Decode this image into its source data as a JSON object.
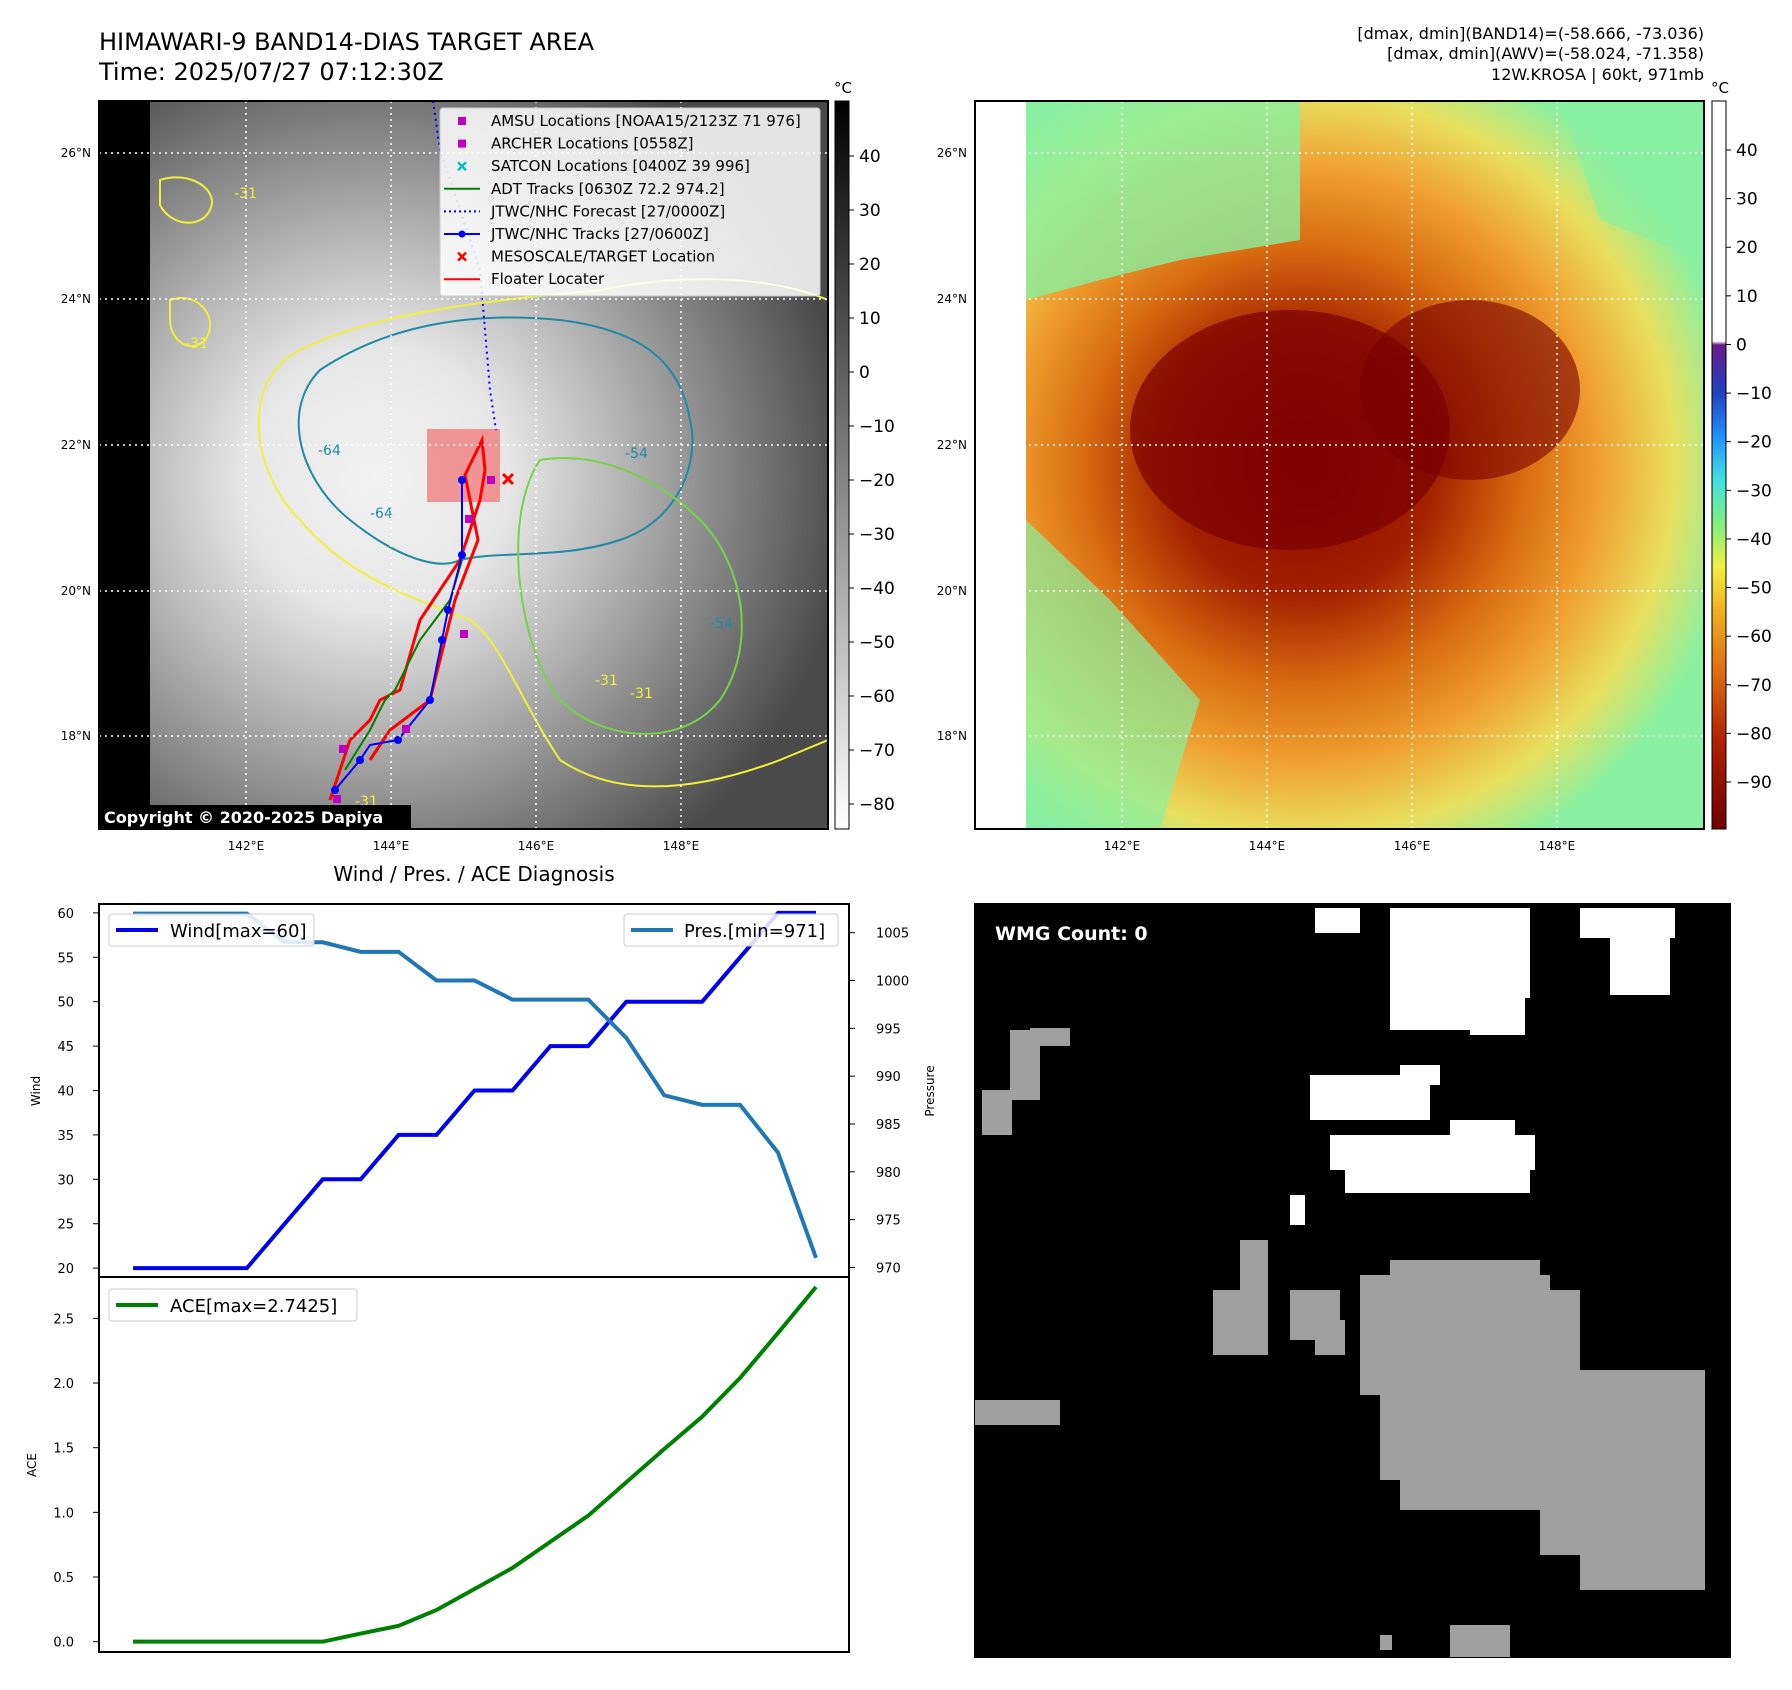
{
  "header": {
    "title_line1": "HIMAWARI-9 BAND14-DIAS TARGET AREA",
    "title_line2": "Time: 2025/07/27 07:12:30Z",
    "info_line1": "[dmax, dmin](BAND14)=(-58.666, -73.036)",
    "info_line2": "[dmax, dmin](AWV)=(-58.024, -71.358)",
    "info_line3": "12W.KROSA | 60kt, 971mb"
  },
  "colors": {
    "wind": "#0000ee",
    "pressure": "#1f77b4",
    "ace": "#008000",
    "adt": "#008000",
    "jtwc": "#0000ff",
    "floater": "#ff0000",
    "amsu": "#c000c0",
    "satcon": "#00c0c0",
    "target_box": "#f08080",
    "contour_yellow": "#f0f03c",
    "contour_teal": "#1f8aa0",
    "contour_green": "#7ccf4a"
  },
  "map": {
    "lat_labels": [
      "26°N",
      "24°N",
      "22°N",
      "20°N",
      "18°N"
    ],
    "lon_labels": [
      "142°E",
      "144°E",
      "146°E",
      "148°E"
    ],
    "contour_labels": [
      "-31",
      "-31",
      "-64",
      "-64",
      "-54",
      "-31",
      "-31",
      "-54",
      "-31"
    ],
    "copyright": "Copyright © 2020-2025 Dapiya",
    "legend": [
      {
        "label": "AMSU Locations [NOAA15/2123Z 71 976]",
        "icon": "square",
        "color": "#c000c0"
      },
      {
        "label": "ARCHER Locations [0558Z]",
        "icon": "square",
        "color": "#c000c0"
      },
      {
        "label": "SATCON Locations [0400Z 39 996]",
        "icon": "x",
        "color": "#00c0c0"
      },
      {
        "label": "ADT Tracks [0630Z 72.2 974.2]",
        "icon": "line",
        "color": "#008000"
      },
      {
        "label": "JTWC/NHC Forecast [27/0000Z]",
        "icon": "dotted",
        "color": "#0000ff"
      },
      {
        "label": "JTWC/NHC Tracks [27/0600Z]",
        "icon": "line-dot",
        "color": "#0000ff"
      },
      {
        "label": "MESOSCALE/TARGET Location",
        "icon": "x",
        "color": "#ff0000"
      },
      {
        "label": "Floater Locater",
        "icon": "line",
        "color": "#ff0000"
      }
    ]
  },
  "colorbar_gray": {
    "unit": "°C",
    "ticks": [
      "40",
      "30",
      "20",
      "10",
      "0",
      "−10",
      "−20",
      "−30",
      "−40",
      "−50",
      "−60",
      "−70",
      "−80"
    ]
  },
  "colorbar_color": {
    "unit": "°C",
    "ticks": [
      "40",
      "30",
      "20",
      "10",
      "0",
      "−10",
      "−20",
      "−30",
      "−40",
      "−50",
      "−60",
      "−70",
      "−80",
      "−90"
    ]
  },
  "wmg": {
    "label": "WMG Count: 0"
  },
  "chart_data": [
    {
      "type": "line",
      "title": "Wind / Pres. / ACE Diagnosis",
      "ylabel": "Wind",
      "ylabel_right": "Pressure",
      "ylim": [
        19,
        61
      ],
      "ylim_right": [
        969,
        1008
      ],
      "yticks": [
        "20",
        "25",
        "30",
        "35",
        "40",
        "45",
        "50",
        "55",
        "60"
      ],
      "yticks_right": [
        "970",
        "975",
        "980",
        "985",
        "990",
        "995",
        "1000",
        "1005"
      ],
      "x": [
        0,
        1,
        2,
        3,
        4,
        5,
        6,
        7,
        8,
        9,
        10,
        11,
        12,
        13,
        14,
        15,
        16,
        17,
        18
      ],
      "series": [
        {
          "name": "Wind[max=60]",
          "axis": "left",
          "values": [
            20,
            20,
            20,
            20,
            25,
            30,
            30,
            35,
            35,
            40,
            40,
            45,
            45,
            50,
            50,
            50,
            55,
            60,
            60
          ]
        },
        {
          "name": "Pres.[min=971]",
          "axis": "right",
          "values": [
            1007,
            1007,
            1007,
            1007,
            1004,
            1004,
            1003,
            1003,
            1000,
            1000,
            998,
            998,
            998,
            994,
            988,
            987,
            987,
            982,
            971
          ]
        }
      ]
    },
    {
      "type": "line",
      "ylabel": "ACE",
      "ylim": [
        -0.08,
        2.82
      ],
      "yticks": [
        "0.0",
        "0.5",
        "1.0",
        "1.5",
        "2.0",
        "2.5"
      ],
      "x": [
        0,
        1,
        2,
        3,
        4,
        5,
        6,
        7,
        8,
        9,
        10,
        11,
        12,
        13,
        14,
        15,
        16,
        17,
        18
      ],
      "series": [
        {
          "name": "ACE[max=2.7425]",
          "values": [
            0,
            0,
            0,
            0,
            0,
            0,
            0.0625,
            0.1225,
            0.245,
            0.4075,
            0.57,
            0.7725,
            0.975,
            1.2325,
            1.49,
            1.74,
            2.04,
            2.3875,
            2.7425
          ]
        }
      ]
    }
  ]
}
